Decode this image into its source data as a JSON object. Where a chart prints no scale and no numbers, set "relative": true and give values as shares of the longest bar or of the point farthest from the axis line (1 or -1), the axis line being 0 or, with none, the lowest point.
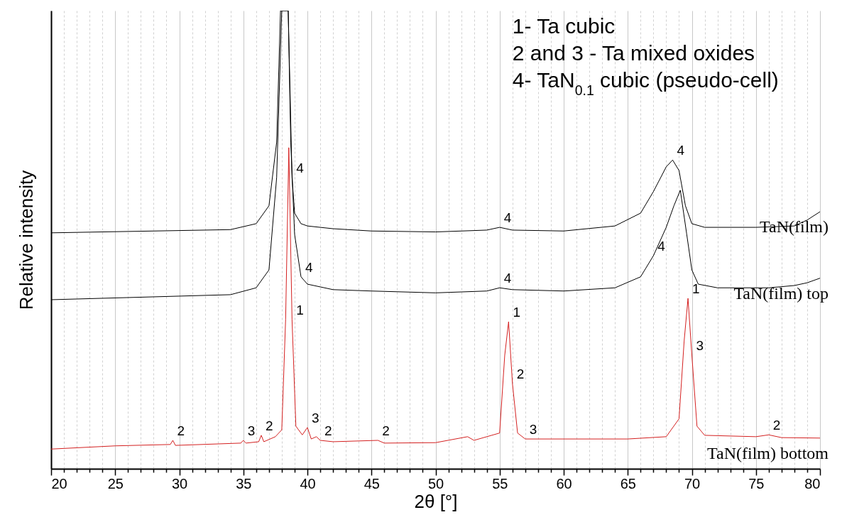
{
  "chart_data": {
    "type": "line",
    "relative": true,
    "xlabel": "2θ [°]",
    "ylabel": "Relative intensity",
    "xlim": [
      20,
      80
    ],
    "xticks": [
      20,
      {
        "value": 21,
        "label": null
      },
      {
        "value": 22,
        "label": null
      },
      {
        "value": 23,
        "label": null
      },
      {
        "value": 24,
        "label": null
      },
      25,
      {
        "value": 26,
        "label": null
      },
      {
        "value": 27,
        "label": null
      },
      {
        "value": 28,
        "label": null
      },
      {
        "value": 29,
        "label": null
      },
      30,
      {
        "value": 31,
        "label": null
      },
      {
        "value": 32,
        "label": null
      },
      {
        "value": 33,
        "label": null
      },
      {
        "value": 34,
        "label": null
      },
      35,
      {
        "value": 36,
        "label": null
      },
      {
        "value": 37,
        "label": null
      },
      {
        "value": 38,
        "label": null
      },
      {
        "value": 39,
        "label": null
      },
      40,
      {
        "value": 41,
        "label": null
      },
      {
        "value": 42,
        "label": null
      },
      {
        "value": 43,
        "label": null
      },
      {
        "value": 44,
        "label": null
      },
      45,
      {
        "value": 46,
        "label": null
      },
      {
        "value": 47,
        "label": null
      },
      {
        "value": 48,
        "label": null
      },
      {
        "value": 49,
        "label": null
      },
      50,
      {
        "value": 51,
        "label": null
      },
      {
        "value": 52,
        "label": null
      },
      {
        "value": 53,
        "label": null
      },
      {
        "value": 54,
        "label": null
      },
      55,
      {
        "value": 56,
        "label": null
      },
      {
        "value": 57,
        "label": null
      },
      {
        "value": 58,
        "label": null
      },
      {
        "value": 59,
        "label": null
      },
      60,
      {
        "value": 61,
        "label": null
      },
      {
        "value": 62,
        "label": null
      },
      {
        "value": 63,
        "label": null
      },
      {
        "value": 64,
        "label": null
      },
      65,
      {
        "value": 66,
        "label": null
      },
      {
        "value": 67,
        "label": null
      },
      {
        "value": 68,
        "label": null
      },
      {
        "value": 69,
        "label": null
      },
      70,
      {
        "value": 71,
        "label": null
      },
      {
        "value": 72,
        "label": null
      },
      {
        "value": 73,
        "label": null
      },
      {
        "value": 74,
        "label": null
      },
      75,
      {
        "value": 76,
        "label": null
      },
      {
        "value": 77,
        "label": null
      },
      {
        "value": 78,
        "label": null
      },
      {
        "value": 79,
        "label": null
      },
      80
    ],
    "grid": "x",
    "series": [
      {
        "name": "TaN(film)",
        "color": "#000000",
        "x": [
          20,
          34,
          36,
          37,
          37.6,
          37.9,
          38.2,
          38.5,
          38.8,
          39,
          39.5,
          40,
          42,
          45,
          50,
          54,
          55,
          56,
          60,
          64,
          66,
          67,
          68,
          68.5,
          69,
          69.5,
          70,
          71,
          75,
          78,
          79,
          80
        ],
        "values": [
          0.515,
          0.522,
          0.535,
          0.574,
          0.713,
          1,
          1,
          1,
          0.636,
          0.558,
          0.535,
          0.53,
          0.524,
          0.519,
          0.517,
          0.521,
          0.527,
          0.521,
          0.519,
          0.53,
          0.558,
          0.605,
          0.659,
          0.674,
          0.651,
          0.574,
          0.535,
          0.527,
          0.527,
          0.53,
          0.543,
          0.561
        ]
      },
      {
        "name": "TaN(film) top",
        "color": "#000000",
        "x": [
          20,
          34,
          36,
          37,
          37.6,
          38,
          38.5,
          38.7,
          39,
          39.5,
          40,
          41,
          42,
          45,
          50,
          54,
          55,
          56,
          60,
          64,
          66,
          67,
          68,
          68.6,
          69.1,
          69.6,
          70,
          70.5,
          72,
          76,
          78,
          79,
          80
        ],
        "values": [
          0.369,
          0.38,
          0.395,
          0.434,
          0.636,
          1,
          1,
          0.713,
          0.512,
          0.419,
          0.403,
          0.397,
          0.391,
          0.388,
          0.384,
          0.388,
          0.395,
          0.391,
          0.388,
          0.395,
          0.419,
          0.465,
          0.527,
          0.574,
          0.608,
          0.512,
          0.434,
          0.403,
          0.395,
          0.395,
          0.4,
          0.406,
          0.416
        ]
      },
      {
        "name": "TaN(film) bottom",
        "color": "#d42020",
        "x": [
          20,
          25,
          29.3,
          29.5,
          29.7,
          34.8,
          35,
          35.2,
          36.2,
          36.4,
          36.6,
          37.5,
          38,
          38.3,
          38.55,
          38.8,
          39.1,
          39.6,
          40,
          40.3,
          40.7,
          41,
          42,
          45.5,
          46,
          50,
          52.5,
          53,
          55,
          55.4,
          55.7,
          56,
          56.4,
          57,
          60,
          65,
          68,
          69,
          69.4,
          69.7,
          70,
          70.4,
          71,
          75,
          76,
          77,
          80
        ],
        "values": [
          0.043,
          0.05,
          0.053,
          0.062,
          0.051,
          0.056,
          0.062,
          0.056,
          0.059,
          0.073,
          0.059,
          0.07,
          0.085,
          0.326,
          0.701,
          0.326,
          0.093,
          0.074,
          0.09,
          0.065,
          0.07,
          0.062,
          0.059,
          0.062,
          0.056,
          0.057,
          0.07,
          0.062,
          0.078,
          0.248,
          0.321,
          0.186,
          0.078,
          0.065,
          0.065,
          0.065,
          0.07,
          0.109,
          0.279,
          0.372,
          0.248,
          0.093,
          0.073,
          0.07,
          0.074,
          0.068,
          0.067
        ]
      }
    ],
    "annotations": [
      "1- Ta cubic",
      "2 and 3 - Ta mixed oxides",
      "4- TaN$_{0.1}$ cubic (pseudo-cell)",
      {
        "text": "2",
        "x": 29.5,
        "y": 0.062
      },
      {
        "text": "3",
        "x": 35,
        "y": 0.062
      },
      {
        "text": "2",
        "x": 36.4,
        "y": 0.073
      },
      {
        "text": "1",
        "x": 38.8,
        "y": 0.326
      },
      {
        "text": "3",
        "x": 40,
        "y": 0.09
      },
      {
        "text": "2",
        "x": 41,
        "y": 0.062
      },
      {
        "text": "2",
        "x": 45.5,
        "y": 0.062
      },
      {
        "text": "1",
        "x": 55.7,
        "y": 0.321
      },
      {
        "text": "2",
        "x": 56,
        "y": 0.186
      },
      {
        "text": "3",
        "x": 57,
        "y": 0.065
      },
      {
        "text": "1",
        "x": 69.7,
        "y": 0.372
      },
      {
        "text": "3",
        "x": 70,
        "y": 0.248
      },
      {
        "text": "2",
        "x": 76,
        "y": 0.074
      },
      {
        "text": "4",
        "x": 38.8,
        "y": 0.636
      },
      {
        "text": "4",
        "x": 39.5,
        "y": 0.419
      },
      {
        "text": "4",
        "x": 55,
        "y": 0.527
      },
      {
        "text": "4",
        "x": 55,
        "y": 0.395
      },
      {
        "text": "4",
        "x": 68.5,
        "y": 0.674
      },
      {
        "text": "4",
        "x": 67,
        "y": 0.465
      }
    ]
  }
}
